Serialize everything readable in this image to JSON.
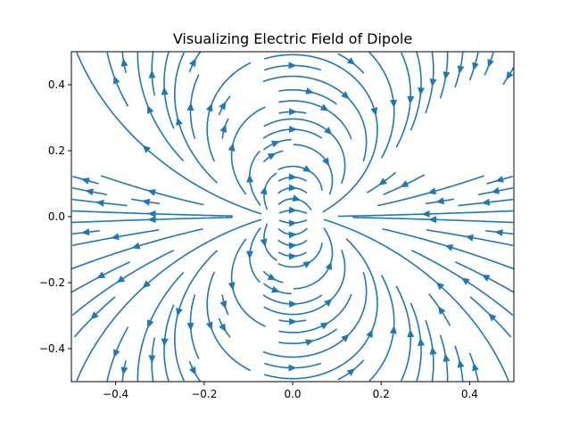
{
  "chart_data": {
    "type": "streamplot",
    "title": "Visualizing Electric Field of Dipole",
    "xlabel": "",
    "ylabel": "",
    "xlim": [
      -0.5,
      0.5
    ],
    "ylim": [
      -0.5,
      0.5
    ],
    "xticks": [
      -0.4,
      -0.2,
      0.0,
      0.2,
      0.4
    ],
    "yticks": [
      -0.4,
      -0.2,
      0.0,
      0.2,
      0.4
    ],
    "xtick_labels": [
      "−0.4",
      "−0.2",
      "0.0",
      "0.2",
      "0.4"
    ],
    "ytick_labels": [
      "−0.4",
      "−0.2",
      "0.0",
      "0.2",
      "0.4"
    ],
    "charges": [
      {
        "x": -0.05,
        "y": 0.0,
        "q": 1
      },
      {
        "x": 0.05,
        "y": 0.0,
        "q": -1
      }
    ],
    "grid": false,
    "line_color": "#1f77b4"
  }
}
